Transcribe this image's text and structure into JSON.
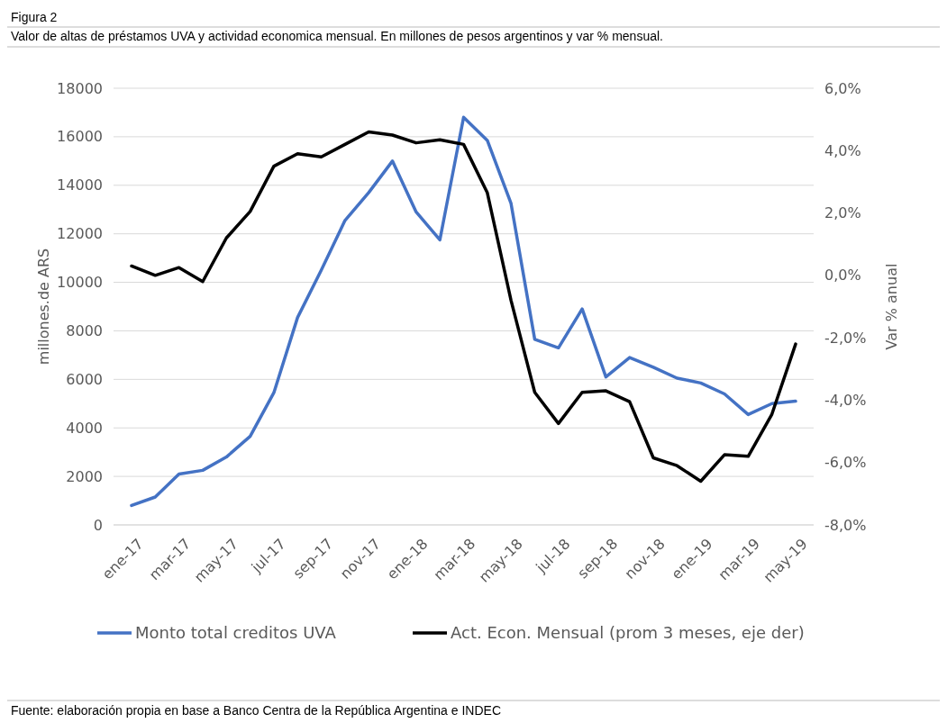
{
  "chart_data": {
    "type": "line",
    "title": "Figura 2",
    "subtitle": "Valor de altas de préstamos UVA y actividad economica mensual. En millones de pesos argentinos y var % mensual.",
    "ylabel": "millones.de ARS",
    "y2label": "Var % anual",
    "categories": [
      "ene-17",
      null,
      "mar-17",
      null,
      "may-17",
      null,
      "jul-17",
      null,
      "sep-17",
      null,
      "nov-17",
      null,
      "ene-18",
      null,
      "mar-18",
      null,
      "may-18",
      null,
      "jul-18",
      null,
      "sep-18",
      null,
      "nov-18",
      null,
      "ene-19",
      null,
      "mar-19",
      null,
      "may-19"
    ],
    "series": [
      {
        "name": "Monto total creditos UVA",
        "color": "#4472c4",
        "values": [
          800,
          1150,
          2100,
          2250,
          2800,
          3650,
          5450,
          8550,
          10500,
          12550,
          13700,
          15000,
          12900,
          11750,
          16800,
          15850,
          13250,
          7650,
          7300,
          8900,
          6100,
          6900,
          6500,
          6050,
          5850,
          5400,
          4550,
          5000,
          5100
        ]
      },
      {
        "name": "Act. Econ. Mensual (prom 3 meses, eje der)",
        "color": "#000000",
        "axis": "y2",
        "values": [
          0.3,
          0.0,
          0.25,
          -0.2,
          1.2,
          2.05,
          3.5,
          3.9,
          3.8,
          4.2,
          4.6,
          4.5,
          4.25,
          4.35,
          4.2,
          2.65,
          -0.8,
          -3.75,
          -4.75,
          -3.75,
          -3.7,
          -4.05,
          -5.85,
          -6.1,
          -6.6,
          -5.75,
          -5.8,
          -4.45,
          -2.2
        ]
      }
    ],
    "ylim": [
      0,
      18000
    ],
    "yticks": [
      0,
      2000,
      4000,
      6000,
      8000,
      10000,
      12000,
      14000,
      16000,
      18000
    ],
    "y2lim": [
      -8,
      6
    ],
    "y2ticks": [
      {
        "value": -8,
        "label": "-8,0%"
      },
      {
        "value": -6,
        "label": "-6,0%"
      },
      {
        "value": -4,
        "label": "-4,0%"
      },
      {
        "value": -2,
        "label": "-2,0%"
      },
      {
        "value": 0,
        "label": "0,0%"
      },
      {
        "value": 2,
        "label": "2,0%"
      },
      {
        "value": 4,
        "label": "4,0%"
      },
      {
        "value": 6,
        "label": "6,0%"
      }
    ],
    "grid": "y",
    "legend": "bottom",
    "marker": "none",
    "line_style": "solid",
    "annotations": [
      "Fuente: elaboración propia en base a Banco Centra de la República Argentina e INDEC"
    ]
  }
}
